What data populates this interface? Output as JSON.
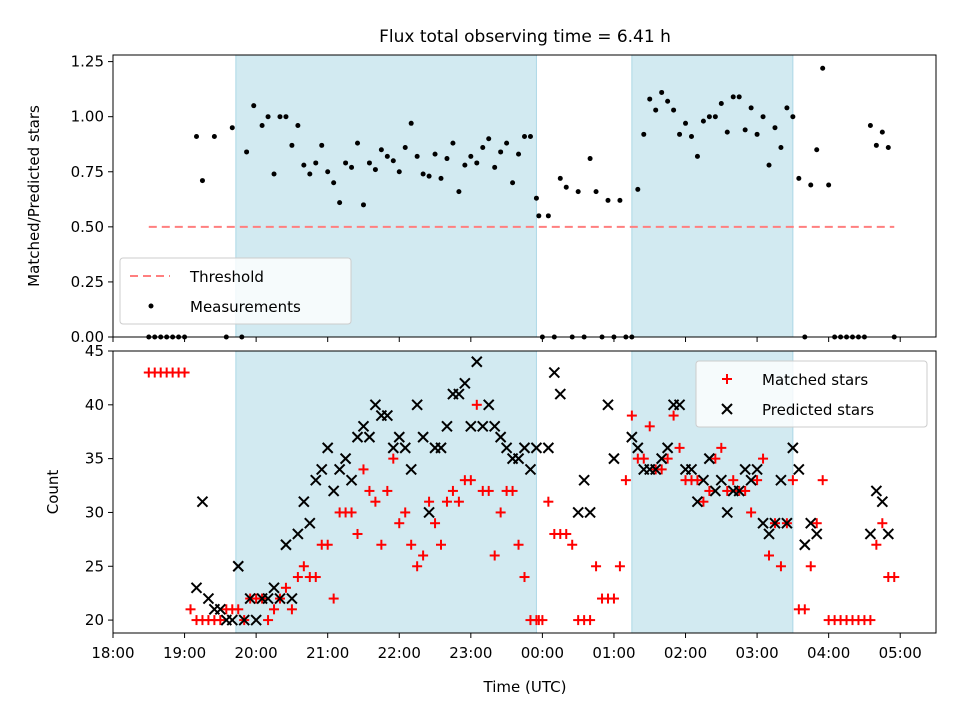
{
  "title": "Flux total observing time = 6.41 h",
  "colors": {
    "shade": "#add8e6",
    "threshold": "#ff7f7f",
    "measurement": "#000000",
    "matched": "#ff0000",
    "predicted": "#000000"
  },
  "chart_data": [
    {
      "type": "scatter",
      "panel": "top",
      "ylabel": "Matched/Predicted stars",
      "xlabel": "",
      "ylim": [
        0,
        1.28
      ],
      "yticks": [
        "0.00",
        "0.25",
        "0.50",
        "0.75",
        "1.00",
        "1.25"
      ],
      "ytick_values": [
        0,
        0.25,
        0.5,
        0.75,
        1.0,
        1.25
      ],
      "legend": {
        "position": "lower-left",
        "entries": [
          {
            "label": "Threshold",
            "style": "dashed-line"
          },
          {
            "label": "Measurements",
            "style": "dot"
          }
        ]
      },
      "threshold": {
        "name": "Threshold",
        "y": 0.5,
        "x_start": "18:30",
        "x_end": "04:55"
      },
      "shaded_intervals": [
        [
          "19:43",
          "23:55"
        ],
        [
          "01:15",
          "03:30"
        ]
      ],
      "series": [
        {
          "name": "Measurements",
          "x": [
            "18:30",
            "18:35",
            "18:40",
            "18:45",
            "18:50",
            "18:55",
            "19:00",
            "19:10",
            "19:15",
            "19:25",
            "19:35",
            "19:40",
            "19:48",
            "19:52",
            "19:58",
            "20:05",
            "20:10",
            "20:15",
            "20:20",
            "20:25",
            "20:30",
            "20:35",
            "20:40",
            "20:45",
            "20:50",
            "20:55",
            "21:00",
            "21:05",
            "21:10",
            "21:15",
            "21:20",
            "21:25",
            "21:30",
            "21:35",
            "21:40",
            "21:45",
            "21:50",
            "21:55",
            "22:00",
            "22:05",
            "22:10",
            "22:15",
            "22:20",
            "22:25",
            "22:30",
            "22:35",
            "22:40",
            "22:45",
            "22:50",
            "22:55",
            "23:00",
            "23:05",
            "23:10",
            "23:15",
            "23:20",
            "23:25",
            "23:30",
            "23:35",
            "23:40",
            "23:45",
            "23:50",
            "23:55",
            "23:57",
            "00:00",
            "00:05",
            "00:10",
            "00:15",
            "00:20",
            "00:25",
            "00:30",
            "00:35",
            "00:40",
            "00:45",
            "00:50",
            "00:55",
            "01:00",
            "01:05",
            "01:10",
            "01:15",
            "01:20",
            "01:25",
            "01:30",
            "01:35",
            "01:40",
            "01:45",
            "01:50",
            "01:55",
            "02:00",
            "02:05",
            "02:10",
            "02:15",
            "02:20",
            "02:25",
            "02:30",
            "02:35",
            "02:40",
            "02:45",
            "02:50",
            "02:55",
            "03:00",
            "03:05",
            "03:10",
            "03:15",
            "03:20",
            "03:25",
            "03:30",
            "03:35",
            "03:40",
            "03:45",
            "03:50",
            "03:55",
            "04:00",
            "04:05",
            "04:10",
            "04:15",
            "04:20",
            "04:25",
            "04:30",
            "04:35",
            "04:40",
            "04:45",
            "04:50",
            "04:55"
          ],
          "y": [
            0,
            0,
            0,
            0,
            0,
            0,
            0,
            0.91,
            0.71,
            0.91,
            0,
            0.95,
            0,
            0.84,
            1.05,
            0.96,
            1.0,
            0.74,
            1.0,
            1.0,
            0.87,
            0.96,
            0.78,
            0.74,
            0.79,
            0.87,
            0.75,
            0.7,
            0.61,
            0.79,
            0.77,
            0.88,
            0.6,
            0.79,
            0.76,
            0.85,
            0.82,
            0.8,
            0.75,
            0.86,
            0.97,
            0.82,
            0.74,
            0.73,
            0.83,
            0.72,
            0.81,
            0.88,
            0.66,
            0.78,
            0.82,
            0.79,
            0.86,
            0.9,
            0.77,
            0.84,
            0.88,
            0.7,
            0.83,
            0.91,
            0.91,
            0.63,
            0.55,
            0,
            0.55,
            0,
            0.72,
            0.68,
            0,
            0.66,
            0,
            0.81,
            0.66,
            0,
            0.62,
            0,
            0.62,
            0,
            0,
            0.67,
            0.92,
            1.08,
            1.03,
            1.11,
            1.07,
            1.03,
            0.92,
            0.97,
            0.91,
            0.82,
            0.98,
            1.0,
            1.0,
            1.06,
            0.93,
            1.09,
            1.09,
            0.94,
            1.04,
            0.92,
            1.0,
            0.78,
            0.95,
            0.86,
            1.04,
            1.0,
            0.72,
            0,
            0.69,
            0.85,
            1.22,
            0.69,
            0,
            0,
            0,
            0,
            0,
            0,
            0.96,
            0.87,
            0.93,
            0.86,
            0
          ]
        }
      ]
    },
    {
      "type": "scatter",
      "panel": "bottom",
      "ylabel": "Count",
      "xlabel": "Time (UTC)",
      "ylim": [
        18.8,
        45
      ],
      "xlim": [
        "18:00",
        "05:30"
      ],
      "yticks": [
        "20",
        "25",
        "30",
        "35",
        "40",
        "45"
      ],
      "ytick_values": [
        20,
        25,
        30,
        35,
        40,
        45
      ],
      "xticks": [
        "18:00",
        "19:00",
        "20:00",
        "21:00",
        "22:00",
        "23:00",
        "00:00",
        "01:00",
        "02:00",
        "03:00",
        "04:00",
        "05:00"
      ],
      "legend": {
        "position": "top-right",
        "entries": [
          {
            "label": "Matched stars",
            "style": "plus"
          },
          {
            "label": "Predicted stars",
            "style": "x"
          }
        ]
      },
      "shaded_intervals": [
        [
          "19:43",
          "23:55"
        ],
        [
          "01:15",
          "03:30"
        ]
      ],
      "series": [
        {
          "name": "Matched stars",
          "x": [
            "18:30",
            "18:35",
            "18:40",
            "18:45",
            "18:50",
            "18:55",
            "19:00",
            "19:05",
            "19:10",
            "19:15",
            "19:20",
            "19:25",
            "19:30",
            "19:35",
            "19:40",
            "19:45",
            "19:50",
            "19:55",
            "20:00",
            "20:05",
            "20:10",
            "20:15",
            "20:20",
            "20:25",
            "20:30",
            "20:35",
            "20:40",
            "20:45",
            "20:50",
            "20:55",
            "21:00",
            "21:05",
            "21:10",
            "21:15",
            "21:20",
            "21:25",
            "21:30",
            "21:35",
            "21:40",
            "21:45",
            "21:50",
            "21:55",
            "22:00",
            "22:05",
            "22:10",
            "22:15",
            "22:20",
            "22:25",
            "22:30",
            "22:35",
            "22:40",
            "22:45",
            "22:50",
            "22:55",
            "23:00",
            "23:05",
            "23:10",
            "23:15",
            "23:20",
            "23:25",
            "23:30",
            "23:35",
            "23:40",
            "23:45",
            "23:50",
            "23:55",
            "23:57",
            "00:00",
            "00:05",
            "00:10",
            "00:15",
            "00:20",
            "00:25",
            "00:30",
            "00:35",
            "00:40",
            "00:45",
            "00:50",
            "00:55",
            "01:00",
            "01:05",
            "01:10",
            "01:15",
            "01:20",
            "01:25",
            "01:30",
            "01:35",
            "01:40",
            "01:45",
            "01:50",
            "01:55",
            "02:00",
            "02:05",
            "02:10",
            "02:15",
            "02:20",
            "02:25",
            "02:30",
            "02:35",
            "02:40",
            "02:45",
            "02:50",
            "02:55",
            "03:00",
            "03:05",
            "03:10",
            "03:15",
            "03:20",
            "03:25",
            "03:30",
            "03:35",
            "03:40",
            "03:45",
            "03:50",
            "03:55",
            "04:00",
            "04:05",
            "04:10",
            "04:15",
            "04:20",
            "04:25",
            "04:30",
            "04:35",
            "04:40",
            "04:45",
            "04:50",
            "04:55"
          ],
          "y": [
            43,
            43,
            43,
            43,
            43,
            43,
            43,
            21,
            20,
            20,
            20,
            20,
            20,
            21,
            21,
            21,
            20,
            22,
            22,
            22,
            20,
            21,
            22,
            23,
            21,
            24,
            25,
            24,
            24,
            27,
            27,
            22,
            30,
            30,
            30,
            28,
            34,
            32,
            31,
            27,
            32,
            35,
            29,
            30,
            27,
            25,
            26,
            31,
            29,
            27,
            31,
            32,
            31,
            33,
            33,
            40,
            32,
            32,
            26,
            30,
            32,
            32,
            27,
            24,
            20,
            20,
            20,
            20,
            31,
            28,
            28,
            28,
            27,
            20,
            20,
            20,
            25,
            22,
            22,
            22,
            25,
            33,
            39,
            35,
            35,
            38,
            34,
            34,
            35,
            39,
            36,
            33,
            33,
            33,
            31,
            32,
            35,
            36,
            32,
            33,
            32,
            32,
            30,
            33,
            35,
            26,
            29,
            25,
            29,
            33,
            21,
            21,
            25,
            29,
            33,
            20,
            20,
            20,
            20,
            20,
            20,
            20,
            20,
            27,
            29,
            24,
            24
          ]
        },
        {
          "name": "Predicted stars",
          "x": [
            "19:10",
            "19:15",
            "19:20",
            "19:25",
            "19:30",
            "19:35",
            "19:40",
            "19:45",
            "19:50",
            "19:55",
            "20:00",
            "20:05",
            "20:10",
            "20:15",
            "20:20",
            "20:25",
            "20:30",
            "20:35",
            "20:40",
            "20:45",
            "20:50",
            "20:55",
            "21:00",
            "21:05",
            "21:10",
            "21:15",
            "21:20",
            "21:25",
            "21:30",
            "21:35",
            "21:40",
            "21:45",
            "21:50",
            "21:55",
            "22:00",
            "22:05",
            "22:10",
            "22:15",
            "22:20",
            "22:25",
            "22:30",
            "22:35",
            "22:40",
            "22:45",
            "22:50",
            "22:55",
            "23:00",
            "23:05",
            "23:10",
            "23:15",
            "23:20",
            "23:25",
            "23:30",
            "23:35",
            "23:40",
            "23:45",
            "23:50",
            "23:55",
            "00:05",
            "00:10",
            "00:15",
            "00:30",
            "00:35",
            "00:40",
            "00:55",
            "01:00",
            "01:15",
            "01:20",
            "01:25",
            "01:30",
            "01:35",
            "01:40",
            "01:45",
            "01:50",
            "01:55",
            "02:00",
            "02:05",
            "02:10",
            "02:15",
            "02:20",
            "02:25",
            "02:30",
            "02:35",
            "02:40",
            "02:45",
            "02:50",
            "02:55",
            "03:00",
            "03:05",
            "03:10",
            "03:15",
            "03:20",
            "03:25",
            "03:30",
            "03:35",
            "03:40",
            "03:45",
            "03:50",
            "04:35",
            "04:40",
            "04:45",
            "04:50"
          ],
          "y": [
            23,
            31,
            22,
            21,
            21,
            20,
            20,
            25,
            20,
            22,
            20,
            22,
            22,
            23,
            22,
            27,
            22,
            28,
            31,
            29,
            33,
            34,
            36,
            32,
            34,
            35,
            33,
            37,
            38,
            37,
            40,
            39,
            39,
            36,
            37,
            36,
            34,
            40,
            37,
            30,
            36,
            36,
            38,
            41,
            41,
            42,
            38,
            44,
            38,
            40,
            38,
            37,
            36,
            35,
            35,
            36,
            34,
            36,
            36,
            43,
            41,
            30,
            33,
            30,
            40,
            35,
            37,
            36,
            34,
            34,
            34,
            35,
            36,
            40,
            40,
            34,
            34,
            31,
            33,
            35,
            32,
            33,
            30,
            32,
            32,
            34,
            33,
            34,
            29,
            28,
            29,
            33,
            29,
            36,
            34,
            27,
            29,
            28,
            28,
            32,
            31,
            28
          ]
        }
      ]
    }
  ]
}
